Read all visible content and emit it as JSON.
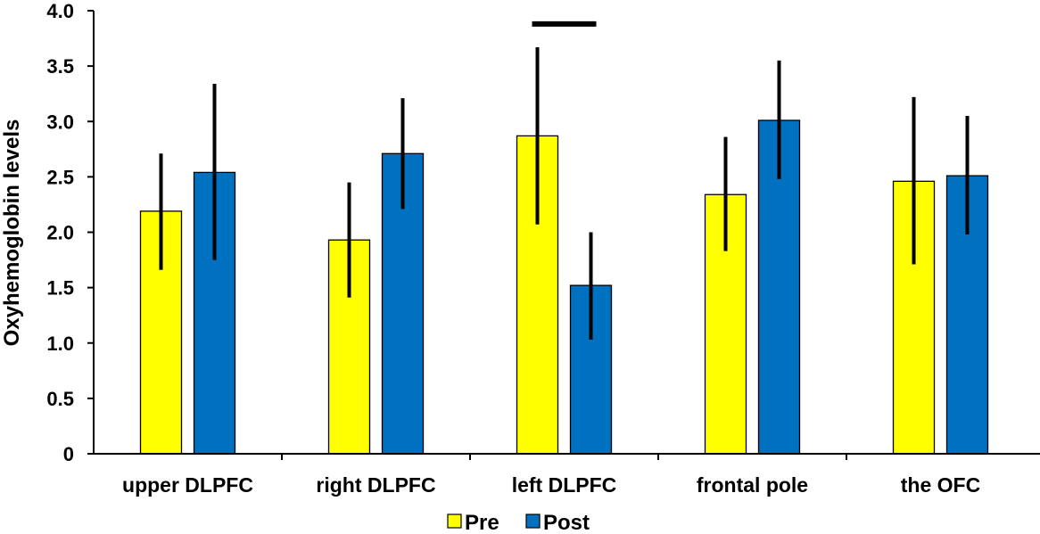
{
  "chart_data": {
    "type": "bar",
    "ylabel": "Oxyhemoglobin levels",
    "ylim": [
      0,
      4.0
    ],
    "yticks": [
      "0",
      "0.5",
      "1.0",
      "1.5",
      "2.0",
      "2.5",
      "3.0",
      "3.5",
      "4.0"
    ],
    "grid": false,
    "legend_position": "bottom",
    "categories": [
      "upper DLPFC",
      "right DLPFC",
      "left DLPFC",
      "frontal pole",
      "the OFC"
    ],
    "series": [
      {
        "name": "Pre",
        "color": "#ffff00",
        "values": [
          2.19,
          1.93,
          2.87,
          2.34,
          2.46
        ],
        "error_low": [
          1.66,
          1.41,
          2.07,
          1.83,
          1.71
        ],
        "error_high": [
          2.71,
          2.45,
          3.67,
          2.86,
          3.22
        ]
      },
      {
        "name": "Post",
        "color": "#0070c0",
        "values": [
          2.54,
          2.71,
          1.52,
          3.01,
          2.51
        ],
        "error_low": [
          1.75,
          2.21,
          1.03,
          2.48,
          1.98
        ],
        "error_high": [
          3.34,
          3.21,
          2.0,
          3.55,
          3.05
        ]
      }
    ],
    "significance_marker": {
      "category_index": 2,
      "y": 3.88
    }
  }
}
